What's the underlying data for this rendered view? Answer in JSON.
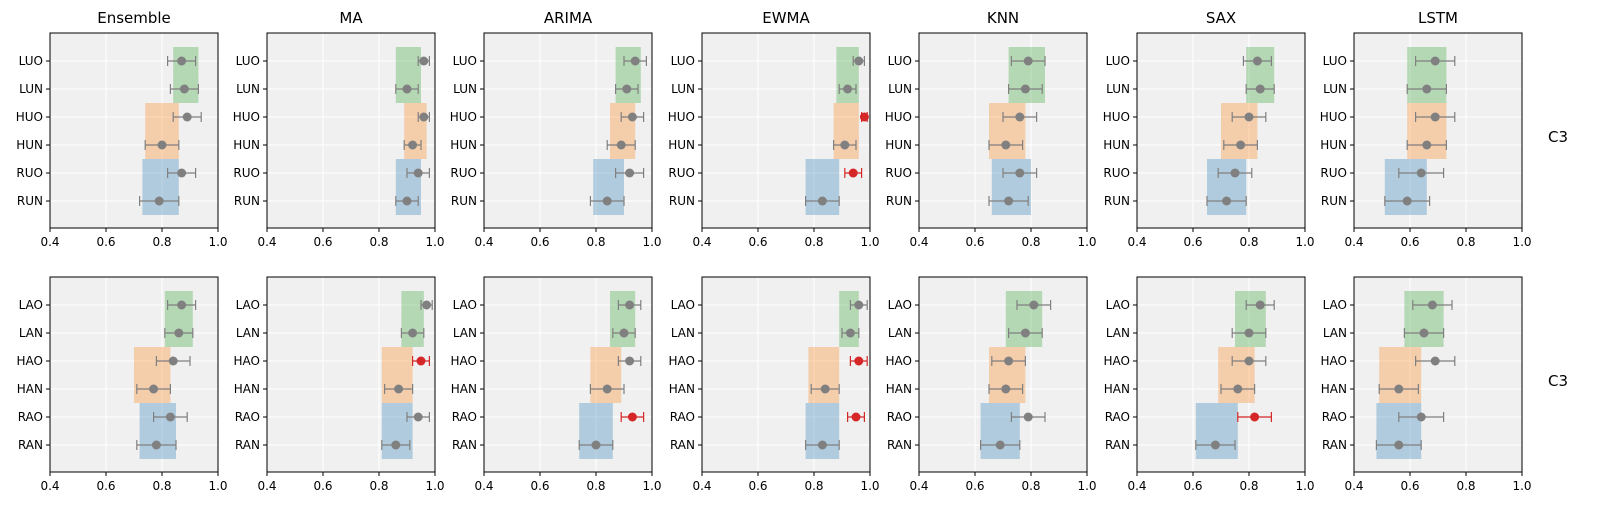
{
  "figure": {
    "row_labels": [
      "C3",
      "C3"
    ],
    "colors": {
      "panel_bg": "#f0f0f0",
      "grid": "#ffffff",
      "point": "#808080",
      "highlight": "#d62728",
      "green": "#2ca02c",
      "orange": "#ff7f0e",
      "blue": "#1f77b4"
    }
  },
  "chart_data": [
    {
      "type": "dot-errorbar-with-range-bands",
      "row": 0,
      "col": 0,
      "title": "Ensemble",
      "categories": [
        "LUO",
        "LUN",
        "HUO",
        "HUN",
        "RUO",
        "RUN"
      ],
      "values": [
        0.87,
        0.88,
        0.89,
        0.8,
        0.87,
        0.79
      ],
      "errors": [
        0.05,
        0.05,
        0.05,
        0.06,
        0.05,
        0.07
      ],
      "highlight": [
        false,
        false,
        false,
        false,
        false,
        false
      ],
      "bands": [
        {
          "color": "green",
          "rows": [
            0,
            1
          ],
          "range": [
            0.84,
            0.93
          ]
        },
        {
          "color": "orange",
          "rows": [
            2,
            3
          ],
          "range": [
            0.74,
            0.86
          ]
        },
        {
          "color": "blue",
          "rows": [
            4,
            5
          ],
          "range": [
            0.73,
            0.86
          ]
        }
      ],
      "xlim": [
        0.4,
        1.0
      ],
      "xticks": [
        "0.4",
        "0.6",
        "0.8",
        "1.0"
      ]
    },
    {
      "type": "dot-errorbar-with-range-bands",
      "row": 0,
      "col": 1,
      "title": "MA",
      "categories": [
        "LUO",
        "LUN",
        "HUO",
        "HUN",
        "RUO",
        "RUN"
      ],
      "values": [
        0.96,
        0.9,
        0.96,
        0.92,
        0.94,
        0.9
      ],
      "errors": [
        0.02,
        0.04,
        0.02,
        0.03,
        0.04,
        0.04
      ],
      "highlight": [
        false,
        false,
        false,
        false,
        false,
        false
      ],
      "bands": [
        {
          "color": "green",
          "rows": [
            0,
            1
          ],
          "range": [
            0.86,
            0.95
          ]
        },
        {
          "color": "orange",
          "rows": [
            2,
            3
          ],
          "range": [
            0.89,
            0.97
          ]
        },
        {
          "color": "blue",
          "rows": [
            4,
            5
          ],
          "range": [
            0.86,
            0.95
          ]
        }
      ],
      "xlim": [
        0.4,
        1.0
      ],
      "xticks": [
        "0.4",
        "0.6",
        "0.8",
        "1.0"
      ]
    },
    {
      "type": "dot-errorbar-with-range-bands",
      "row": 0,
      "col": 2,
      "title": "ARIMA",
      "categories": [
        "LUO",
        "LUN",
        "HUO",
        "HUN",
        "RUO",
        "RUN"
      ],
      "values": [
        0.94,
        0.91,
        0.93,
        0.89,
        0.92,
        0.84
      ],
      "errors": [
        0.04,
        0.04,
        0.04,
        0.05,
        0.05,
        0.06
      ],
      "highlight": [
        false,
        false,
        false,
        false,
        false,
        false
      ],
      "bands": [
        {
          "color": "green",
          "rows": [
            0,
            1
          ],
          "range": [
            0.87,
            0.96
          ]
        },
        {
          "color": "orange",
          "rows": [
            2,
            3
          ],
          "range": [
            0.85,
            0.94
          ]
        },
        {
          "color": "blue",
          "rows": [
            4,
            5
          ],
          "range": [
            0.79,
            0.9
          ]
        }
      ],
      "xlim": [
        0.4,
        1.0
      ],
      "xticks": [
        "0.4",
        "0.6",
        "0.8",
        "1.0"
      ]
    },
    {
      "type": "dot-errorbar-with-range-bands",
      "row": 0,
      "col": 3,
      "title": "EWMA",
      "categories": [
        "LUO",
        "LUN",
        "HUO",
        "HUN",
        "RUO",
        "RUN"
      ],
      "values": [
        0.96,
        0.92,
        0.98,
        0.91,
        0.94,
        0.83
      ],
      "errors": [
        0.02,
        0.03,
        0.01,
        0.04,
        0.03,
        0.06
      ],
      "highlight": [
        false,
        false,
        true,
        false,
        true,
        false
      ],
      "bands": [
        {
          "color": "green",
          "rows": [
            0,
            1
          ],
          "range": [
            0.88,
            0.96
          ]
        },
        {
          "color": "orange",
          "rows": [
            2,
            3
          ],
          "range": [
            0.87,
            0.96
          ]
        },
        {
          "color": "blue",
          "rows": [
            4,
            5
          ],
          "range": [
            0.77,
            0.89
          ]
        }
      ],
      "xlim": [
        0.4,
        1.0
      ],
      "xticks": [
        "0.4",
        "0.6",
        "0.8",
        "1.0"
      ]
    },
    {
      "type": "dot-errorbar-with-range-bands",
      "row": 0,
      "col": 4,
      "title": "KNN",
      "categories": [
        "LUO",
        "LUN",
        "HUO",
        "HUN",
        "RUO",
        "RUN"
      ],
      "values": [
        0.79,
        0.78,
        0.76,
        0.71,
        0.76,
        0.72
      ],
      "errors": [
        0.06,
        0.06,
        0.06,
        0.06,
        0.06,
        0.07
      ],
      "highlight": [
        false,
        false,
        false,
        false,
        false,
        false
      ],
      "bands": [
        {
          "color": "green",
          "rows": [
            0,
            1
          ],
          "range": [
            0.72,
            0.85
          ]
        },
        {
          "color": "orange",
          "rows": [
            2,
            3
          ],
          "range": [
            0.65,
            0.78
          ]
        },
        {
          "color": "blue",
          "rows": [
            4,
            5
          ],
          "range": [
            0.66,
            0.8
          ]
        }
      ],
      "xlim": [
        0.4,
        1.0
      ],
      "xticks": [
        "0.4",
        "0.6",
        "0.8",
        "1.0"
      ]
    },
    {
      "type": "dot-errorbar-with-range-bands",
      "row": 0,
      "col": 5,
      "title": "SAX",
      "categories": [
        "LUO",
        "LUN",
        "HUO",
        "HUN",
        "RUO",
        "RUN"
      ],
      "values": [
        0.83,
        0.84,
        0.8,
        0.77,
        0.75,
        0.72
      ],
      "errors": [
        0.05,
        0.05,
        0.06,
        0.06,
        0.06,
        0.07
      ],
      "highlight": [
        false,
        false,
        false,
        false,
        false,
        false
      ],
      "bands": [
        {
          "color": "green",
          "rows": [
            0,
            1
          ],
          "range": [
            0.79,
            0.89
          ]
        },
        {
          "color": "orange",
          "rows": [
            2,
            3
          ],
          "range": [
            0.7,
            0.83
          ]
        },
        {
          "color": "blue",
          "rows": [
            4,
            5
          ],
          "range": [
            0.65,
            0.79
          ]
        }
      ],
      "xlim": [
        0.4,
        1.0
      ],
      "xticks": [
        "0.4",
        "0.6",
        "0.8",
        "1.0"
      ]
    },
    {
      "type": "dot-errorbar-with-range-bands",
      "row": 0,
      "col": 6,
      "title": "LSTM",
      "categories": [
        "LUO",
        "LUN",
        "HUO",
        "HUN",
        "RUO",
        "RUN"
      ],
      "values": [
        0.69,
        0.66,
        0.69,
        0.66,
        0.64,
        0.59
      ],
      "errors": [
        0.07,
        0.07,
        0.07,
        0.07,
        0.08,
        0.08
      ],
      "highlight": [
        false,
        false,
        false,
        false,
        false,
        false
      ],
      "bands": [
        {
          "color": "green",
          "rows": [
            0,
            1
          ],
          "range": [
            0.59,
            0.73
          ]
        },
        {
          "color": "orange",
          "rows": [
            2,
            3
          ],
          "range": [
            0.59,
            0.73
          ]
        },
        {
          "color": "blue",
          "rows": [
            4,
            5
          ],
          "range": [
            0.51,
            0.66
          ]
        }
      ],
      "xlim": [
        0.4,
        1.0
      ],
      "xticks": [
        "0.4",
        "0.6",
        "0.8",
        "1.0"
      ]
    },
    {
      "type": "dot-errorbar-with-range-bands",
      "row": 1,
      "col": 0,
      "title": "",
      "categories": [
        "LAO",
        "LAN",
        "HAO",
        "HAN",
        "RAO",
        "RAN"
      ],
      "values": [
        0.87,
        0.86,
        0.84,
        0.77,
        0.83,
        0.78
      ],
      "errors": [
        0.05,
        0.05,
        0.06,
        0.06,
        0.06,
        0.07
      ],
      "highlight": [
        false,
        false,
        false,
        false,
        false,
        false
      ],
      "bands": [
        {
          "color": "green",
          "rows": [
            0,
            1
          ],
          "range": [
            0.81,
            0.91
          ]
        },
        {
          "color": "orange",
          "rows": [
            2,
            3
          ],
          "range": [
            0.7,
            0.83
          ]
        },
        {
          "color": "blue",
          "rows": [
            4,
            5
          ],
          "range": [
            0.72,
            0.85
          ]
        }
      ],
      "xlim": [
        0.4,
        1.0
      ],
      "xticks": [
        "0.4",
        "0.6",
        "0.8",
        "1.0"
      ]
    },
    {
      "type": "dot-errorbar-with-range-bands",
      "row": 1,
      "col": 1,
      "title": "",
      "categories": [
        "LAO",
        "LAN",
        "HAO",
        "HAN",
        "RAO",
        "RAN"
      ],
      "values": [
        0.97,
        0.92,
        0.95,
        0.87,
        0.94,
        0.86
      ],
      "errors": [
        0.02,
        0.04,
        0.03,
        0.05,
        0.04,
        0.05
      ],
      "highlight": [
        false,
        false,
        true,
        false,
        false,
        false
      ],
      "bands": [
        {
          "color": "green",
          "rows": [
            0,
            1
          ],
          "range": [
            0.88,
            0.96
          ]
        },
        {
          "color": "orange",
          "rows": [
            2,
            3
          ],
          "range": [
            0.81,
            0.92
          ]
        },
        {
          "color": "blue",
          "rows": [
            4,
            5
          ],
          "range": [
            0.81,
            0.92
          ]
        }
      ],
      "xlim": [
        0.4,
        1.0
      ],
      "xticks": [
        "0.4",
        "0.6",
        "0.8",
        "1.0"
      ]
    },
    {
      "type": "dot-errorbar-with-range-bands",
      "row": 1,
      "col": 2,
      "title": "",
      "categories": [
        "LAO",
        "LAN",
        "HAO",
        "HAN",
        "RAO",
        "RAN"
      ],
      "values": [
        0.92,
        0.9,
        0.92,
        0.84,
        0.93,
        0.8
      ],
      "errors": [
        0.04,
        0.04,
        0.04,
        0.06,
        0.04,
        0.06
      ],
      "highlight": [
        false,
        false,
        false,
        false,
        true,
        false
      ],
      "bands": [
        {
          "color": "green",
          "rows": [
            0,
            1
          ],
          "range": [
            0.85,
            0.94
          ]
        },
        {
          "color": "orange",
          "rows": [
            2,
            3
          ],
          "range": [
            0.78,
            0.89
          ]
        },
        {
          "color": "blue",
          "rows": [
            4,
            5
          ],
          "range": [
            0.74,
            0.86
          ]
        }
      ],
      "xlim": [
        0.4,
        1.0
      ],
      "xticks": [
        "0.4",
        "0.6",
        "0.8",
        "1.0"
      ]
    },
    {
      "type": "dot-errorbar-with-range-bands",
      "row": 1,
      "col": 3,
      "title": "",
      "categories": [
        "LAO",
        "LAN",
        "HAO",
        "HAN",
        "RAO",
        "RAN"
      ],
      "values": [
        0.96,
        0.93,
        0.96,
        0.84,
        0.95,
        0.83
      ],
      "errors": [
        0.03,
        0.03,
        0.03,
        0.05,
        0.03,
        0.06
      ],
      "highlight": [
        false,
        false,
        true,
        false,
        true,
        false
      ],
      "bands": [
        {
          "color": "green",
          "rows": [
            0,
            1
          ],
          "range": [
            0.89,
            0.96
          ]
        },
        {
          "color": "orange",
          "rows": [
            2,
            3
          ],
          "range": [
            0.78,
            0.89
          ]
        },
        {
          "color": "blue",
          "rows": [
            4,
            5
          ],
          "range": [
            0.77,
            0.89
          ]
        }
      ],
      "xlim": [
        0.4,
        1.0
      ],
      "xticks": [
        "0.4",
        "0.6",
        "0.8",
        "1.0"
      ]
    },
    {
      "type": "dot-errorbar-with-range-bands",
      "row": 1,
      "col": 4,
      "title": "",
      "categories": [
        "LAO",
        "LAN",
        "HAO",
        "HAN",
        "RAO",
        "RAN"
      ],
      "values": [
        0.81,
        0.78,
        0.72,
        0.71,
        0.79,
        0.69
      ],
      "errors": [
        0.06,
        0.06,
        0.06,
        0.06,
        0.06,
        0.07
      ],
      "highlight": [
        false,
        false,
        false,
        false,
        false,
        false
      ],
      "bands": [
        {
          "color": "green",
          "rows": [
            0,
            1
          ],
          "range": [
            0.71,
            0.84
          ]
        },
        {
          "color": "orange",
          "rows": [
            2,
            3
          ],
          "range": [
            0.65,
            0.78
          ]
        },
        {
          "color": "blue",
          "rows": [
            4,
            5
          ],
          "range": [
            0.62,
            0.76
          ]
        }
      ],
      "xlim": [
        0.4,
        1.0
      ],
      "xticks": [
        "0.4",
        "0.6",
        "0.8",
        "1.0"
      ]
    },
    {
      "type": "dot-errorbar-with-range-bands",
      "row": 1,
      "col": 5,
      "title": "",
      "categories": [
        "LAO",
        "LAN",
        "HAO",
        "HAN",
        "RAO",
        "RAN"
      ],
      "values": [
        0.84,
        0.8,
        0.8,
        0.76,
        0.82,
        0.68
      ],
      "errors": [
        0.05,
        0.06,
        0.06,
        0.06,
        0.06,
        0.07
      ],
      "highlight": [
        false,
        false,
        false,
        false,
        true,
        false
      ],
      "bands": [
        {
          "color": "green",
          "rows": [
            0,
            1
          ],
          "range": [
            0.75,
            0.86
          ]
        },
        {
          "color": "orange",
          "rows": [
            2,
            3
          ],
          "range": [
            0.69,
            0.82
          ]
        },
        {
          "color": "blue",
          "rows": [
            4,
            5
          ],
          "range": [
            0.61,
            0.76
          ]
        }
      ],
      "xlim": [
        0.4,
        1.0
      ],
      "xticks": [
        "0.4",
        "0.6",
        "0.8",
        "1.0"
      ]
    },
    {
      "type": "dot-errorbar-with-range-bands",
      "row": 1,
      "col": 6,
      "title": "",
      "categories": [
        "LAO",
        "LAN",
        "HAO",
        "HAN",
        "RAO",
        "RAN"
      ],
      "values": [
        0.68,
        0.65,
        0.69,
        0.56,
        0.64,
        0.56
      ],
      "errors": [
        0.07,
        0.07,
        0.07,
        0.07,
        0.08,
        0.08
      ],
      "highlight": [
        false,
        false,
        false,
        false,
        false,
        false
      ],
      "bands": [
        {
          "color": "green",
          "rows": [
            0,
            1
          ],
          "range": [
            0.58,
            0.72
          ]
        },
        {
          "color": "orange",
          "rows": [
            2,
            3
          ],
          "range": [
            0.49,
            0.64
          ]
        },
        {
          "color": "blue",
          "rows": [
            4,
            5
          ],
          "range": [
            0.48,
            0.64
          ]
        }
      ],
      "xlim": [
        0.4,
        1.0
      ],
      "xticks": [
        "0.4",
        "0.6",
        "0.8",
        "1.0"
      ]
    }
  ]
}
